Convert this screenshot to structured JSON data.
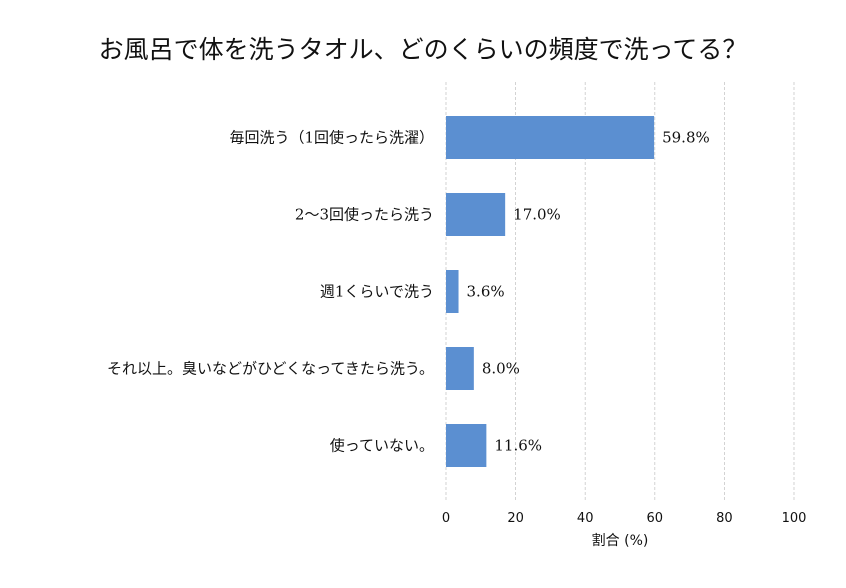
{
  "chart_data": {
    "type": "bar",
    "orientation": "horizontal",
    "title": "お風呂で体を洗うタオル、どのくらいの頻度で洗ってる？",
    "categories": [
      "毎回洗う（1回使ったら洗濯）",
      "2〜3回使ったら洗う",
      "週1くらいで洗う",
      "それ以上。臭いなどがひどくなってきたら洗う。",
      "使っていない。"
    ],
    "values": [
      59.8,
      17.0,
      3.6,
      8.0,
      11.6
    ],
    "value_labels": [
      "59.8%",
      "17.0%",
      "3.6%",
      "8.0%",
      "11.6%"
    ],
    "xlabel": "割合 (%)",
    "ylabel": "",
    "xlim": [
      0,
      100
    ],
    "xticks": [
      0,
      20,
      40,
      60,
      80,
      100
    ],
    "xtick_labels": [
      "0",
      "20",
      "40",
      "60",
      "80",
      "100"
    ],
    "grid": "vertical-dashed",
    "bar_color": "#5b8fd1",
    "grid_color": "#c8c8c8"
  }
}
